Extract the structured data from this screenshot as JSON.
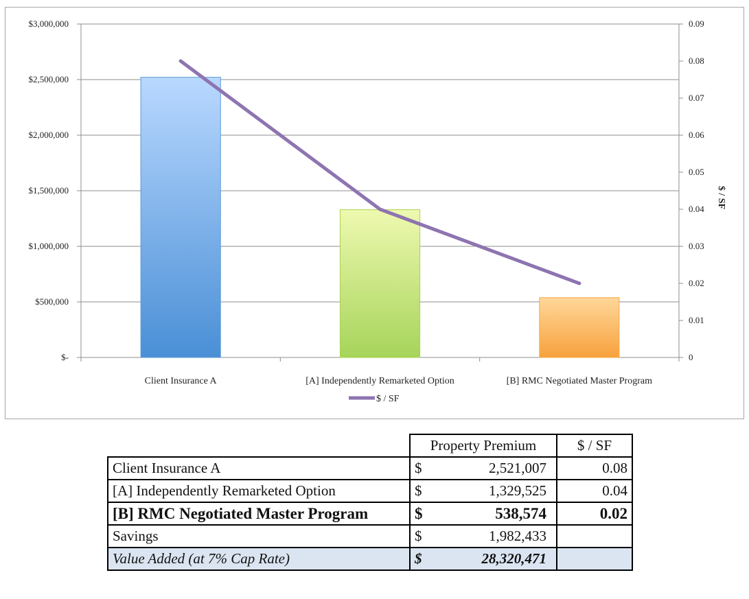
{
  "colors": {
    "bar1": "#5b9bd5",
    "bar2": "#a9d34c",
    "bar3": "#f9a94a",
    "line": "#8e74b0",
    "grid": "#8c8c8c",
    "value_row_bg": "#dbe5f1"
  },
  "chart_data": {
    "type": "bar",
    "categories": [
      "Client Insurance A",
      "[A] Independently Remarketed Option",
      "[B] RMC Negotiated Master Program"
    ],
    "series": [
      {
        "name": "",
        "axis": "left",
        "values": [
          2521007,
          1329525,
          538574
        ]
      },
      {
        "name": "$ / SF",
        "type": "line",
        "axis": "right",
        "values": [
          0.08,
          0.04,
          0.02
        ]
      }
    ],
    "y_left": {
      "range": [
        0,
        3000000
      ],
      "tick_labels": [
        "$-",
        "$500,000",
        "$1,000,000",
        "$1,500,000",
        "$2,000,000",
        "$2,500,000",
        "$3,000,000"
      ]
    },
    "y_right": {
      "title": "$ / SF",
      "range": [
        0,
        0.09
      ],
      "tick_labels": [
        "0",
        "0.01",
        "0.02",
        "0.03",
        "0.04",
        "0.05",
        "0.06",
        "0.07",
        "0.08",
        "0.09"
      ]
    },
    "grid": true,
    "legend": {
      "placement": "bottom",
      "entries": [
        "$ / SF"
      ]
    }
  },
  "table": {
    "headers": {
      "premium": "Property Premium",
      "psf": "$ / SF"
    },
    "rows": [
      {
        "label": "Client Insurance A",
        "currency": "$",
        "premium": "2,521,007",
        "psf": "0.08"
      },
      {
        "label": "[A] Independently Remarketed Option",
        "currency": "$",
        "premium": "1,329,525",
        "psf": "0.04"
      },
      {
        "label": "[B] RMC Negotiated Master Program",
        "currency": "$",
        "premium": "538,574",
        "psf": "0.02"
      },
      {
        "label": "Savings",
        "currency": "$",
        "premium": "1,982,433",
        "psf": ""
      },
      {
        "label": "Value Added (at 7% Cap Rate)",
        "currency": "$",
        "premium": "28,320,471",
        "psf": ""
      }
    ]
  }
}
